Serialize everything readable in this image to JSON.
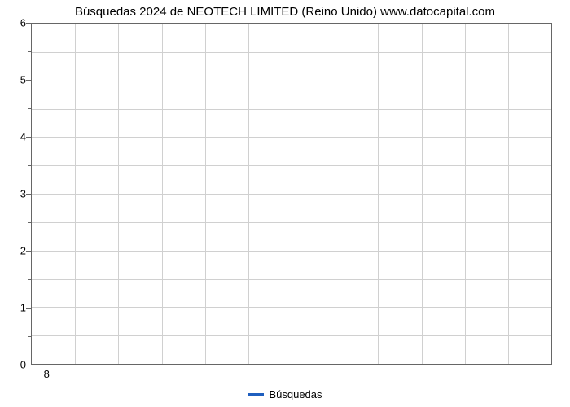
{
  "chart": {
    "type": "line",
    "title": "Búsquedas 2024 de NEOTECH  LIMITED (Reino Unido) www.datocapital.com",
    "title_fontsize": 15,
    "title_color": "#000000",
    "background_color": "#ffffff",
    "plot_border_color": "#666666",
    "grid_color": "#d0d0d0",
    "y_axis": {
      "min": 0,
      "max": 6,
      "major_ticks": [
        0,
        1,
        2,
        3,
        4,
        5,
        6
      ],
      "minor_steps_per_major": 2,
      "label_fontsize": 13
    },
    "x_axis": {
      "ticks": [
        8
      ],
      "label_fontsize": 13,
      "vertical_gridlines": 12
    },
    "series": [
      {
        "name": "Búsquedas",
        "color": "#1f5fbf",
        "line_width": 3,
        "data": []
      }
    ],
    "legend": {
      "position": "bottom",
      "items": [
        {
          "label": "Búsquedas",
          "color": "#1f5fbf"
        }
      ]
    }
  }
}
